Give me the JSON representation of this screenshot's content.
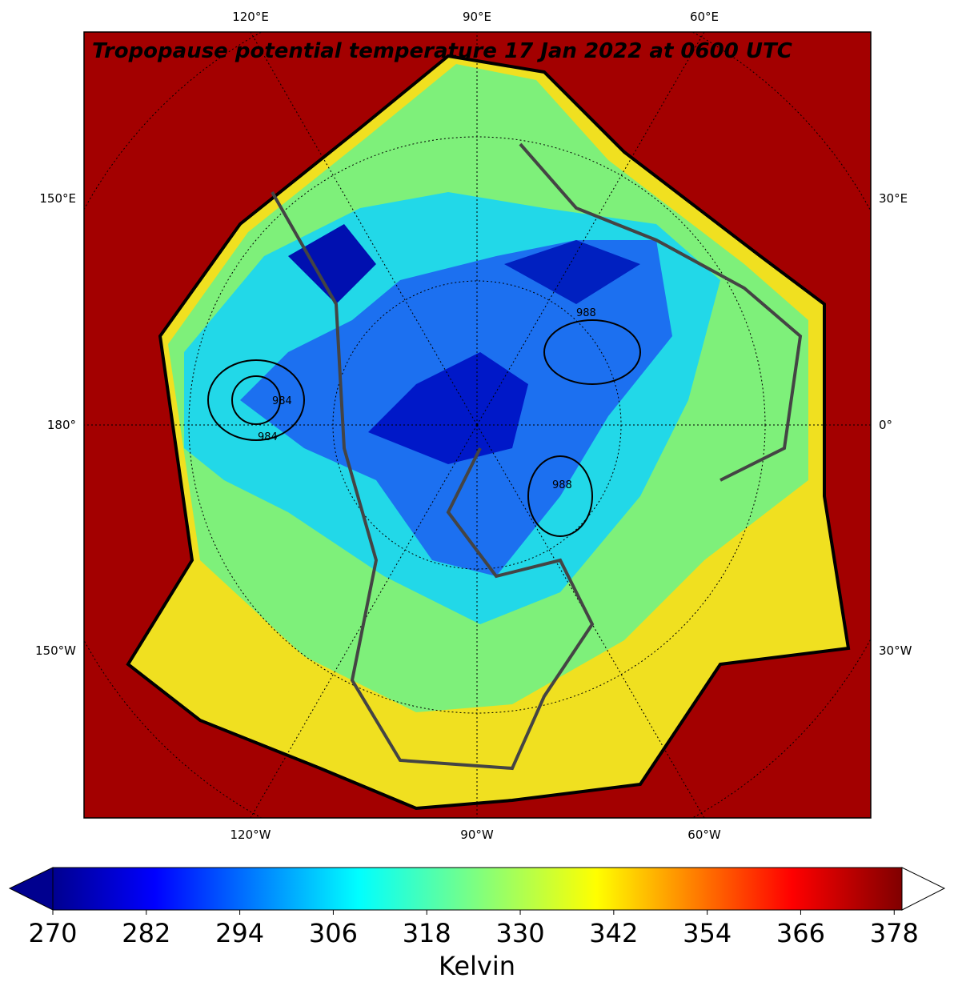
{
  "map": {
    "title": "Tropopause potential temperature 17 Jan 2022 at 0600 UTC",
    "top_labels": [
      "120°E",
      "90°E",
      "60°E"
    ],
    "bottom_labels": [
      "120°W",
      "90°W",
      "60°W"
    ],
    "left_labels": [
      "150°E",
      "180°",
      "150°W"
    ],
    "right_labels": [
      "30°E",
      "0°",
      "30°W"
    ],
    "contour_labels": [
      "984",
      "988",
      "988",
      "984"
    ]
  },
  "colorbar": {
    "range": [
      270,
      379
    ],
    "ticks": [
      270,
      282,
      294,
      306,
      318,
      330,
      342,
      354,
      366,
      378
    ],
    "label": "Kelvin"
  }
}
